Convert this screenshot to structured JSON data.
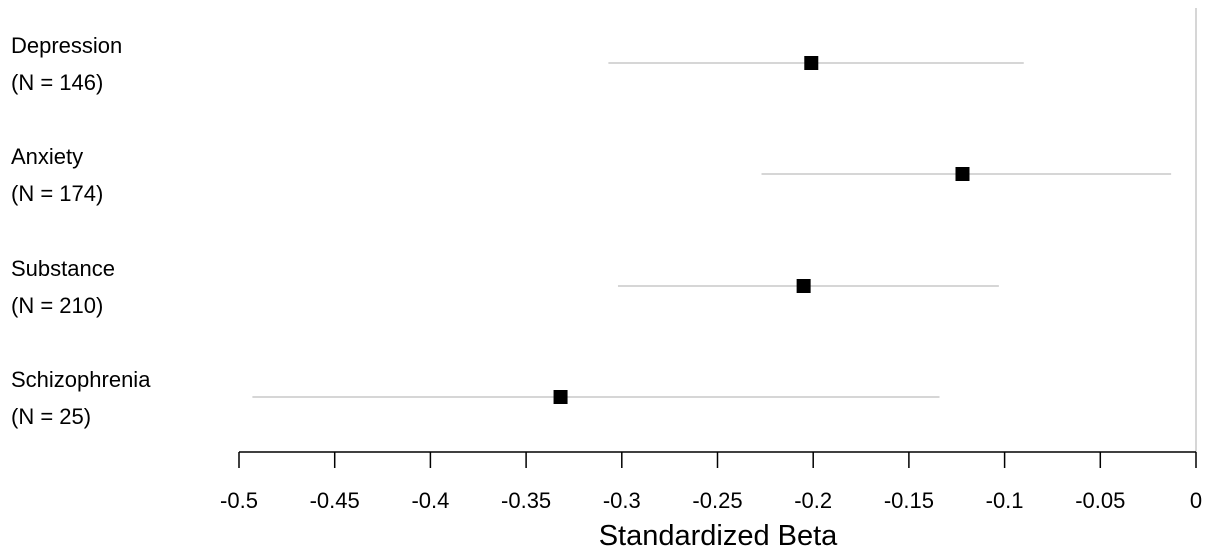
{
  "chart_data": {
    "type": "scatter",
    "subtype": "forest-plot",
    "title": "",
    "xlabel": "Standardized Beta",
    "ylabel": "",
    "xlim": [
      -0.5,
      0
    ],
    "xticks": [
      -0.5,
      -0.45,
      -0.4,
      -0.35,
      -0.3,
      -0.25,
      -0.2,
      -0.15,
      -0.1,
      -0.05,
      0
    ],
    "xtick_labels": [
      "-0.5",
      "-0.45",
      "-0.4",
      "-0.35",
      "-0.3",
      "-0.25",
      "-0.2",
      "-0.15",
      "-0.1",
      "-0.05",
      "0"
    ],
    "grid": false,
    "legend": "none",
    "reference_line": 0,
    "colors": {
      "marker": "#000000",
      "interval": "#c8c8c8",
      "axis": "#000000",
      "reference": "#c8c8c8"
    },
    "rows": [
      {
        "label": "Depression",
        "n_label": "(N = 146)",
        "estimate": -0.201,
        "ci_low": -0.307,
        "ci_high": -0.09
      },
      {
        "label": "Anxiety",
        "n_label": "(N = 174)",
        "estimate": -0.122,
        "ci_low": -0.227,
        "ci_high": -0.013
      },
      {
        "label": "Substance",
        "n_label": "(N = 210)",
        "estimate": -0.205,
        "ci_low": -0.302,
        "ci_high": -0.103
      },
      {
        "label": "Schizophrenia",
        "n_label": "(N = 25)",
        "estimate": -0.332,
        "ci_low": -0.493,
        "ci_high": -0.134
      }
    ]
  }
}
